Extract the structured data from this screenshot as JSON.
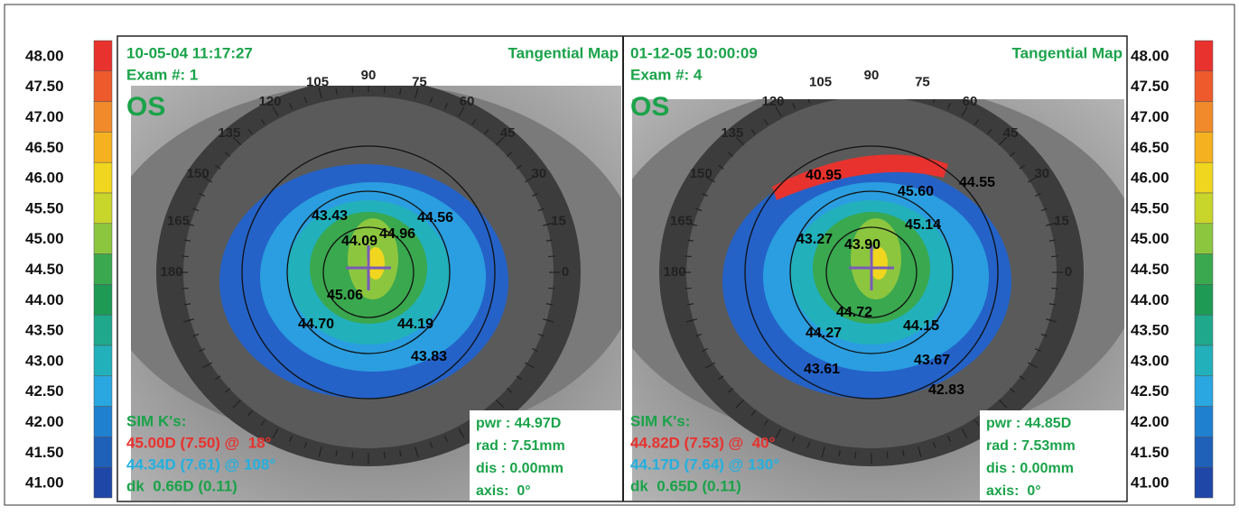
{
  "scale": {
    "labels": [
      "48.00",
      "47.50",
      "47.00",
      "46.50",
      "46.00",
      "45.50",
      "45.00",
      "44.50",
      "44.00",
      "43.50",
      "43.00",
      "42.50",
      "42.00",
      "41.50",
      "41.00"
    ],
    "colors": [
      "#e8322e",
      "#ee5a2b",
      "#f08a2a",
      "#f5b120",
      "#f0d61e",
      "#c8d52b",
      "#8cc63f",
      "#3aa84e",
      "#1e9a55",
      "#1fa88c",
      "#22b0bb",
      "#2aa6e0",
      "#1f80d0",
      "#1f60b8",
      "#1f47a8"
    ]
  },
  "panels": [
    {
      "date": "10-05-04 11:17:27",
      "map_type": "Tangential Map",
      "exam": "Exam #: 1",
      "eye": "OS",
      "angles": [
        "105",
        "90",
        "75",
        "60",
        "45",
        "30",
        "15",
        "0",
        "180",
        "165",
        "150",
        "135",
        "120"
      ],
      "map_values": [
        "43.43",
        "44.56",
        "44.09",
        "44.96",
        "45.06",
        "44.70",
        "44.19",
        "43.83"
      ],
      "sim_k_title": "SIM K's:",
      "sim_k": [
        "45.00D (7.50) @  18°",
        "44.34D (7.61) @ 108°",
        "dk  0.66D (0.11)"
      ],
      "info": [
        "pwr : 44.97D",
        "rad : 7.51mm",
        "dis : 0.00mm",
        "axis:  0°"
      ]
    },
    {
      "date": "01-12-05 10:00:09",
      "map_type": "Tangential Map",
      "exam": "Exam #: 4",
      "eye": "OS",
      "angles": [
        "105",
        "90",
        "75",
        "60",
        "45",
        "30",
        "15",
        "0",
        "180",
        "165",
        "150",
        "135",
        "120"
      ],
      "map_values": [
        "40.95",
        "45.60",
        "44.55",
        "45.14",
        "43.27",
        "43.90",
        "44.72",
        "44.27",
        "44.15",
        "43.61",
        "43.67",
        "42.83"
      ],
      "sim_k_title": "SIM K's:",
      "sim_k": [
        "44.82D (7.53) @  40°",
        "44.17D (7.64) @ 130°",
        "dk  0.65D (0.11)"
      ],
      "info": [
        "pwr : 44.85D",
        "rad : 7.53mm",
        "dis : 0.00mm",
        "axis:  0°"
      ]
    }
  ]
}
